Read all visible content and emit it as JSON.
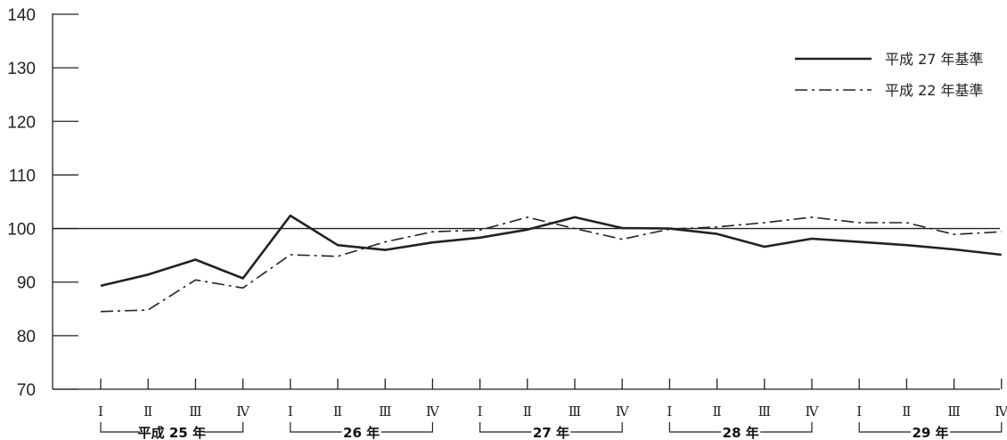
{
  "chart_data": {
    "type": "line",
    "title": "",
    "xlabel": "",
    "ylabel": "",
    "ylim": [
      70,
      140
    ],
    "yticks": [
      70,
      80,
      90,
      100,
      110,
      120,
      130,
      140
    ],
    "reference_line": 100,
    "grid": false,
    "legend_position": "top-right",
    "quarter_labels": [
      "Ⅰ",
      "Ⅱ",
      "Ⅲ",
      "Ⅳ"
    ],
    "years": [
      {
        "label": "平成 25 年"
      },
      {
        "label": "26 年"
      },
      {
        "label": "27 年"
      },
      {
        "label": "28 年"
      },
      {
        "label": "29 年"
      }
    ],
    "series": [
      {
        "name": "平成 27 年基準",
        "style": "solid",
        "color": "#222222",
        "values": [
          89.3,
          91.4,
          94.2,
          90.7,
          102.4,
          96.9,
          96.0,
          97.4,
          98.3,
          99.8,
          102.1,
          100.1,
          100.0,
          99.0,
          96.6,
          98.1,
          97.5,
          96.9,
          96.1,
          95.1
        ]
      },
      {
        "name": "平成 22 年基準",
        "style": "dashdot",
        "color": "#222222",
        "values": [
          84.5,
          84.8,
          90.4,
          88.9,
          95.1,
          94.8,
          97.5,
          99.4,
          99.7,
          102.1,
          100.0,
          98.0,
          99.9,
          100.3,
          101.1,
          102.1,
          101.1,
          101.1,
          98.9,
          99.4
        ]
      }
    ]
  }
}
